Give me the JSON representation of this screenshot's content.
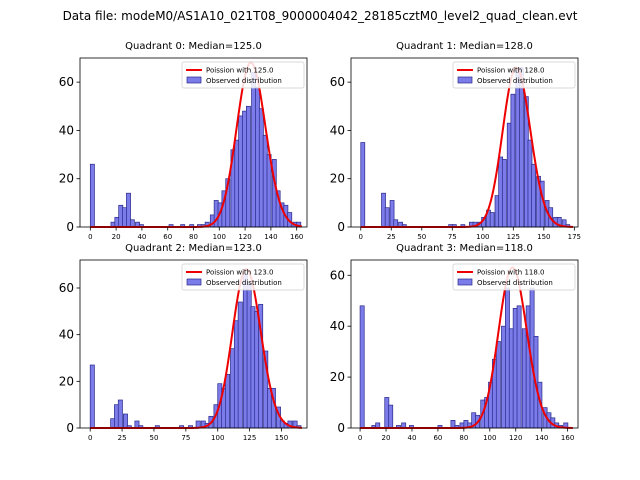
{
  "figure_title": "Data file: modeM0/AS1A10_021T08_9000004042_28185cztM0_level2_quad_clean.evt",
  "colors": {
    "poisson_line": "#ee0000",
    "hist_fill": "#7b7bea",
    "hist_edge": "#2a2a8a",
    "axes": "#000000"
  },
  "chart_data": [
    {
      "type": "bar",
      "title": "Quadrant 0: Median=125.0",
      "legend": [
        "Poission with 125.0",
        "Observed distribution"
      ],
      "legend_position": "top-right",
      "xlim": [
        -8,
        168
      ],
      "ylim": [
        0,
        70
      ],
      "xticks": [
        0,
        20,
        40,
        60,
        80,
        100,
        120,
        140,
        160
      ],
      "yticks": [
        0,
        20,
        40,
        60
      ],
      "bin_width": 3.2,
      "bins": [
        [
          0,
          26
        ],
        [
          16,
          2
        ],
        [
          19,
          4
        ],
        [
          22,
          9
        ],
        [
          25,
          8
        ],
        [
          28,
          14
        ],
        [
          31,
          3
        ],
        [
          35,
          2
        ],
        [
          38,
          1
        ],
        [
          61,
          1
        ],
        [
          70,
          1
        ],
        [
          77,
          1
        ],
        [
          83,
          1
        ],
        [
          86,
          1
        ],
        [
          89,
          2
        ],
        [
          93,
          5
        ],
        [
          96,
          11
        ],
        [
          99,
          10
        ],
        [
          102,
          15
        ],
        [
          105,
          20
        ],
        [
          109,
          32
        ],
        [
          112,
          36
        ],
        [
          115,
          46
        ],
        [
          118,
          48
        ],
        [
          121,
          50
        ],
        [
          125,
          64
        ],
        [
          128,
          58
        ],
        [
          131,
          49
        ],
        [
          134,
          38
        ],
        [
          137,
          30
        ],
        [
          141,
          28
        ],
        [
          144,
          15
        ],
        [
          147,
          10
        ],
        [
          150,
          9
        ],
        [
          153,
          6
        ],
        [
          157,
          2
        ],
        [
          160,
          2
        ]
      ],
      "poisson_mean": 125.0,
      "poisson_peak": 68
    },
    {
      "type": "bar",
      "title": "Quadrant 1: Median=128.0",
      "legend": [
        "Poission with 128.0",
        "Observed distribution"
      ],
      "legend_position": "top-right",
      "xlim": [
        -8,
        178
      ],
      "ylim": [
        0,
        70
      ],
      "xticks": [
        0,
        25,
        50,
        75,
        100,
        125,
        150,
        175
      ],
      "yticks": [
        0,
        20,
        40,
        60
      ],
      "bin_width": 3.3,
      "bins": [
        [
          0,
          35
        ],
        [
          17,
          14
        ],
        [
          20,
          8
        ],
        [
          24,
          11
        ],
        [
          27,
          3
        ],
        [
          31,
          2
        ],
        [
          34,
          1
        ],
        [
          72,
          1
        ],
        [
          75,
          1
        ],
        [
          82,
          1
        ],
        [
          89,
          2
        ],
        [
          92,
          2
        ],
        [
          96,
          2
        ],
        [
          99,
          4
        ],
        [
          103,
          7
        ],
        [
          106,
          6
        ],
        [
          110,
          13
        ],
        [
          113,
          29
        ],
        [
          116,
          28
        ],
        [
          120,
          43
        ],
        [
          123,
          55
        ],
        [
          127,
          65
        ],
        [
          130,
          66
        ],
        [
          134,
          54
        ],
        [
          137,
          36
        ],
        [
          140,
          26
        ],
        [
          144,
          21
        ],
        [
          147,
          19
        ],
        [
          151,
          11
        ],
        [
          154,
          8
        ],
        [
          158,
          4
        ],
        [
          161,
          4
        ],
        [
          165,
          3
        ],
        [
          168,
          1
        ]
      ],
      "poisson_mean": 128.0,
      "poisson_peak": 66
    },
    {
      "type": "bar",
      "title": "Quadrant 2: Median=123.0",
      "legend": [
        "Poission with 123.0",
        "Observed distribution"
      ],
      "legend_position": "top-right",
      "xlim": [
        -8,
        170
      ],
      "ylim": [
        0,
        72
      ],
      "xticks": [
        0,
        25,
        50,
        75,
        100,
        125,
        150
      ],
      "yticks": [
        0,
        20,
        40,
        60
      ],
      "bin_width": 3.3,
      "bins": [
        [
          0,
          27
        ],
        [
          16,
          4
        ],
        [
          19,
          10
        ],
        [
          22,
          12
        ],
        [
          26,
          6
        ],
        [
          29,
          1
        ],
        [
          35,
          3
        ],
        [
          38,
          1
        ],
        [
          51,
          1
        ],
        [
          70,
          1
        ],
        [
          77,
          1
        ],
        [
          83,
          3
        ],
        [
          87,
          3
        ],
        [
          90,
          2
        ],
        [
          93,
          5
        ],
        [
          97,
          10
        ],
        [
          100,
          19
        ],
        [
          103,
          17
        ],
        [
          106,
          23
        ],
        [
          110,
          34
        ],
        [
          113,
          46
        ],
        [
          116,
          54
        ],
        [
          120,
          66
        ],
        [
          123,
          62
        ],
        [
          126,
          52
        ],
        [
          129,
          50
        ],
        [
          132,
          53
        ],
        [
          136,
          33
        ],
        [
          139,
          17
        ],
        [
          142,
          17
        ],
        [
          146,
          9
        ],
        [
          149,
          3
        ],
        [
          152,
          2
        ],
        [
          155,
          3
        ],
        [
          159,
          3
        ],
        [
          162,
          1
        ]
      ],
      "poisson_mean": 123.0,
      "poisson_peak": 68
    },
    {
      "type": "bar",
      "title": "Quadrant 3: Median=118.0",
      "legend": [
        "Poission with 118.0",
        "Observed distribution"
      ],
      "legend_position": "top-right",
      "xlim": [
        -7,
        168
      ],
      "ylim": [
        0,
        66
      ],
      "xticks": [
        0,
        20,
        40,
        60,
        80,
        100,
        120,
        140,
        160
      ],
      "yticks": [
        0,
        20,
        40,
        60
      ],
      "bin_width": 3.2,
      "bins": [
        [
          0,
          48
        ],
        [
          9,
          1
        ],
        [
          12,
          2
        ],
        [
          19,
          12
        ],
        [
          22,
          9
        ],
        [
          28,
          1
        ],
        [
          32,
          2
        ],
        [
          38,
          1
        ],
        [
          60,
          1
        ],
        [
          70,
          3
        ],
        [
          73,
          1
        ],
        [
          77,
          2
        ],
        [
          80,
          3
        ],
        [
          83,
          2
        ],
        [
          86,
          6
        ],
        [
          89,
          5
        ],
        [
          93,
          11
        ],
        [
          96,
          12
        ],
        [
          99,
          18
        ],
        [
          102,
          27
        ],
        [
          105,
          34
        ],
        [
          109,
          40
        ],
        [
          112,
          55
        ],
        [
          115,
          39
        ],
        [
          118,
          47
        ],
        [
          121,
          48
        ],
        [
          125,
          39
        ],
        [
          128,
          48
        ],
        [
          131,
          55
        ],
        [
          134,
          36
        ],
        [
          137,
          18
        ],
        [
          141,
          8
        ],
        [
          144,
          6
        ],
        [
          147,
          4
        ],
        [
          150,
          2
        ],
        [
          153,
          1
        ],
        [
          157,
          2
        ]
      ],
      "poisson_mean": 118.0,
      "poisson_peak": 63
    }
  ]
}
